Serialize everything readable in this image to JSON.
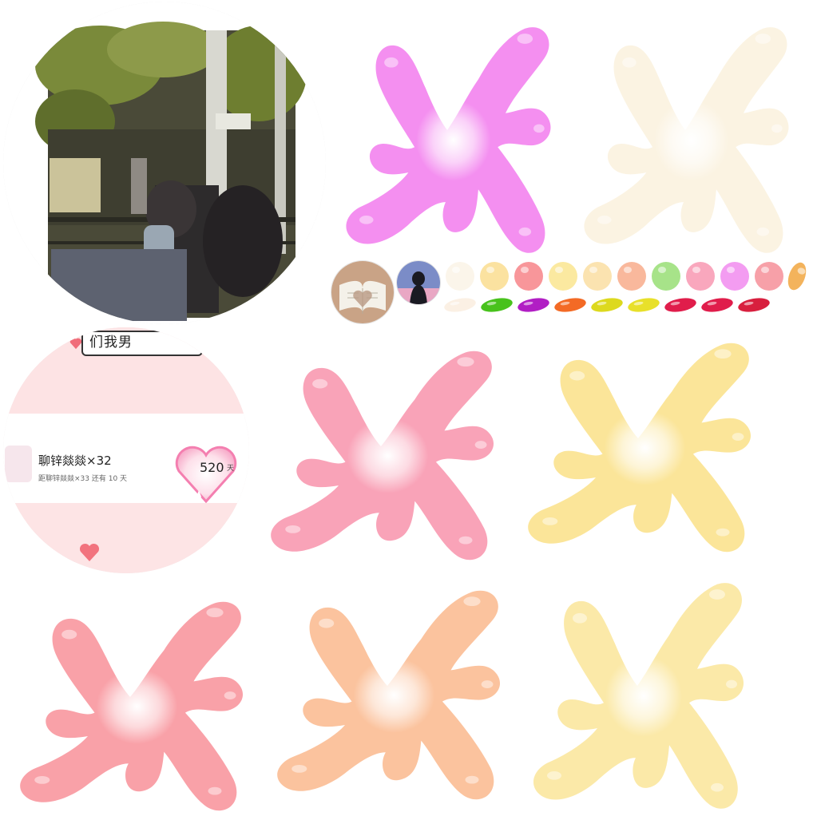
{
  "screenshot_card": {
    "top_text": "们我男",
    "chat_name": "聊锌燚燚×32",
    "chat_sub": "距聊锌燚燚×33 还有 10 天",
    "count": "520",
    "count_unit": "天"
  },
  "splats": [
    {
      "name": "splat-magenta",
      "color": "#f48ff0"
    },
    {
      "name": "splat-cream-faded",
      "color": "#fbf3e2"
    },
    {
      "name": "splat-pink",
      "color": "#f9a3b8"
    },
    {
      "name": "splat-yellow",
      "color": "#fbe599"
    },
    {
      "name": "splat-coral",
      "color": "#f9a1a8"
    },
    {
      "name": "splat-peach",
      "color": "#fbc39e"
    },
    {
      "name": "splat-light-yellow",
      "color": "#fbe9a8"
    }
  ],
  "palette": {
    "beads": [
      "#fbf5ea",
      "#fbe2a0",
      "#f8969a",
      "#fbe9a0",
      "#fbe3b0",
      "#f9b89c",
      "#a7e389",
      "#f9a7bd",
      "#f39cf1",
      "#f7a0a8",
      "#f3b35c"
    ],
    "pills": [
      "#fbf0e4",
      "#48c21c",
      "#b11ec4",
      "#f36a25",
      "#ddd91e",
      "#e8e02a",
      "#e01d4b",
      "#e01d4b",
      "#d81f3e"
    ]
  }
}
